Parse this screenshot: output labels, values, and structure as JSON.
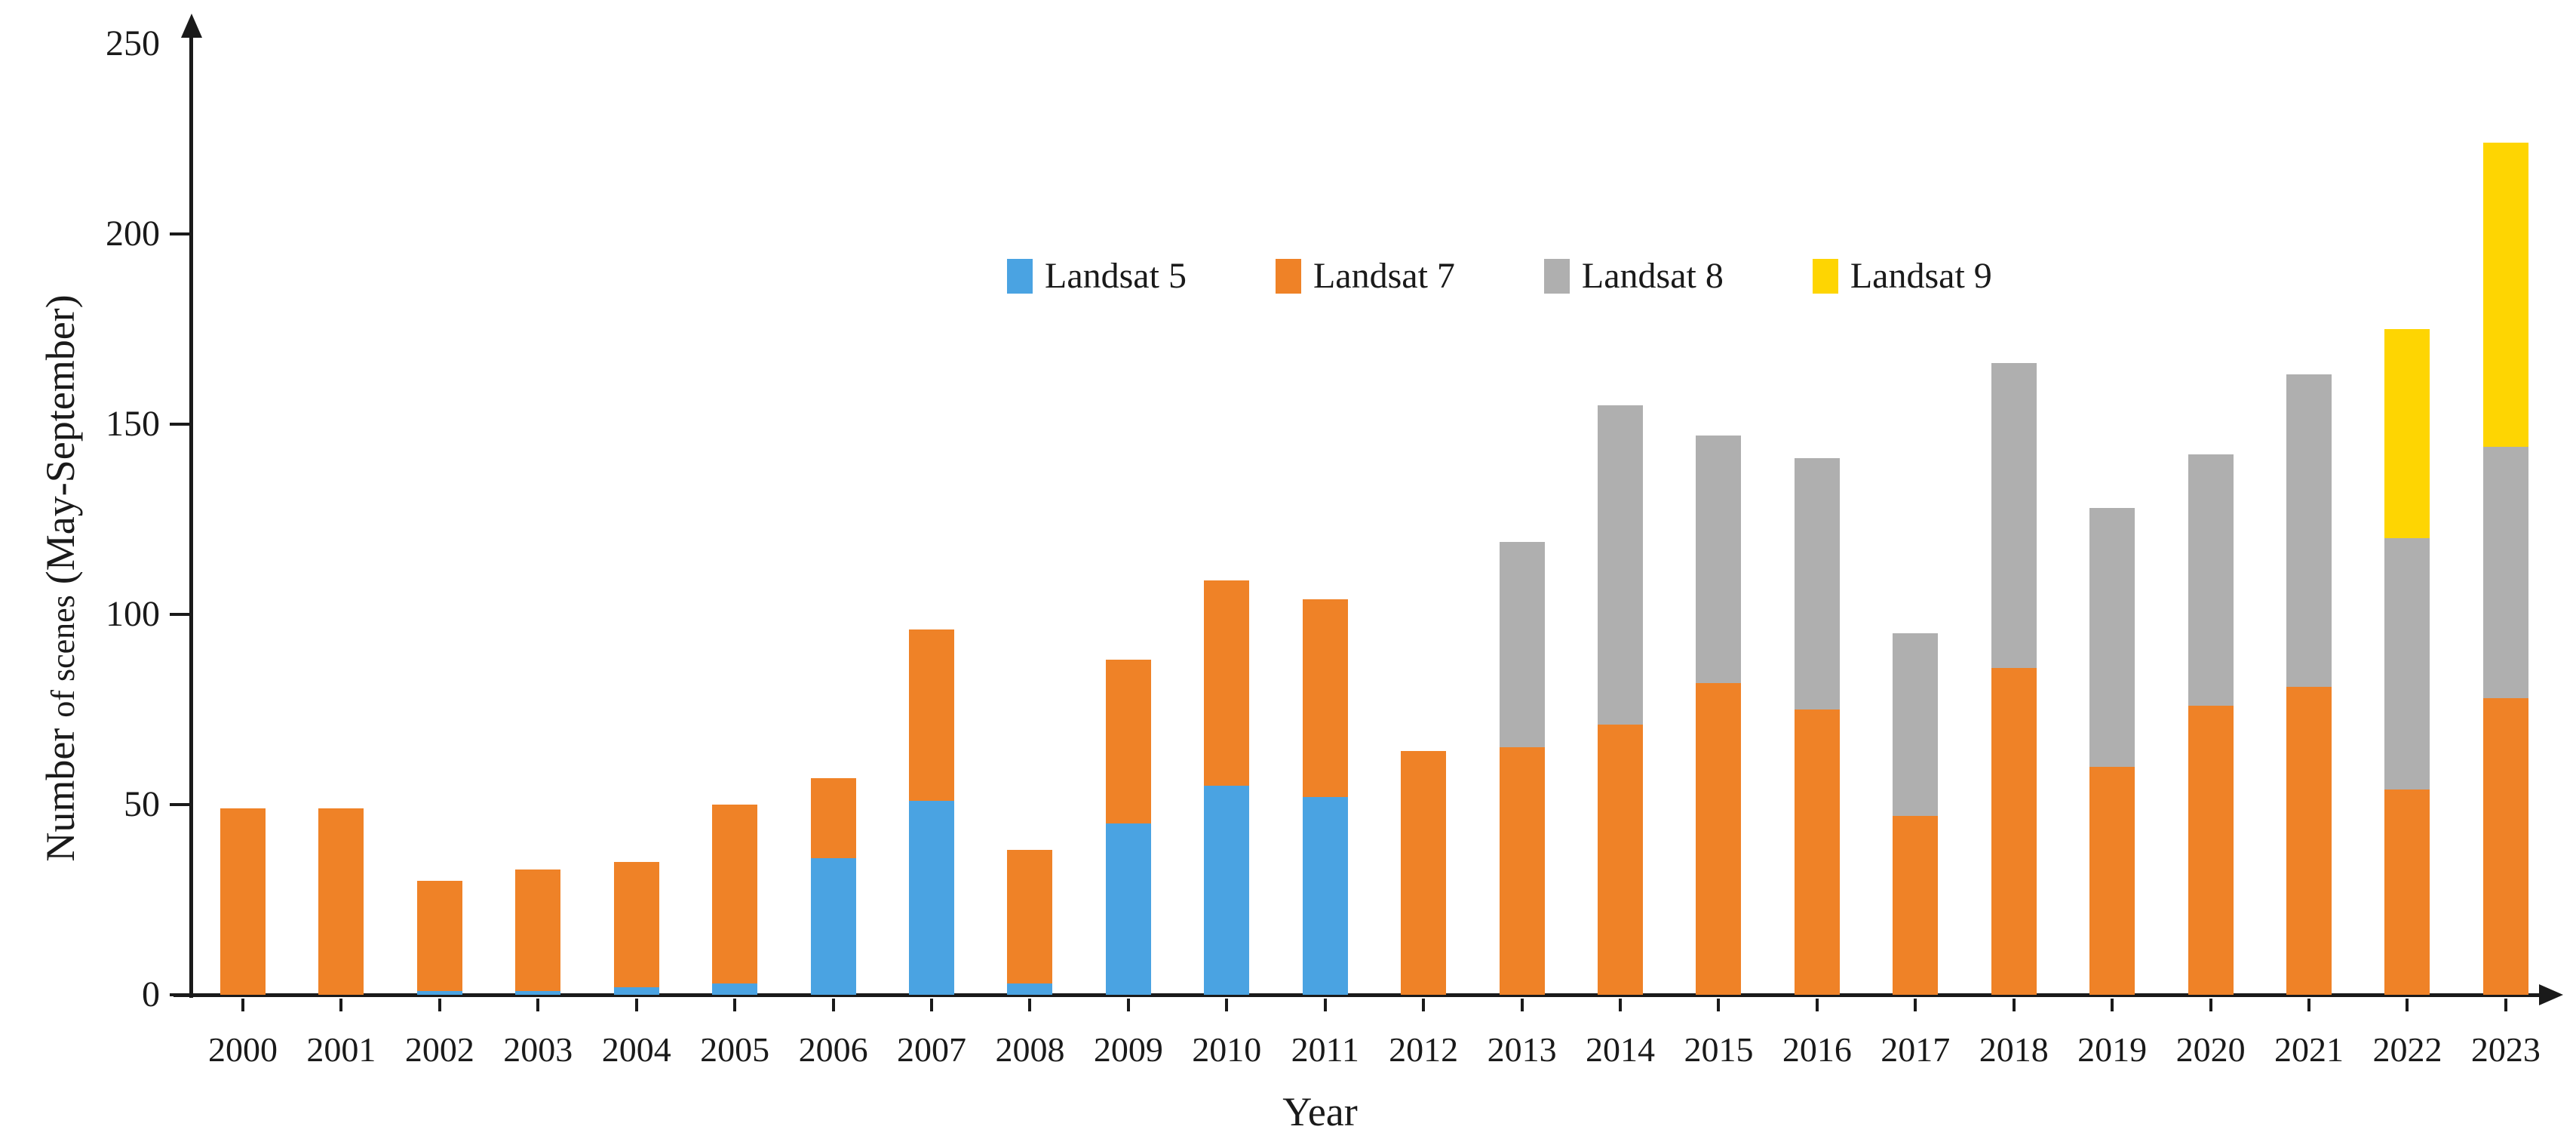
{
  "chart_data": {
    "type": "bar",
    "stacked": true,
    "title": "",
    "xlabel": "Year",
    "ylabel": "Number of scenes (May-September)",
    "ylabel_parts": {
      "pre": "Number",
      "small": "of scenes",
      "post": "(May-September)"
    },
    "x": [
      "2000",
      "2001",
      "2002",
      "2003",
      "2004",
      "2005",
      "2006",
      "2007",
      "2008",
      "2009",
      "2010",
      "2011",
      "2012",
      "2013",
      "2014",
      "2015",
      "2016",
      "2017",
      "2018",
      "2019",
      "2020",
      "2021",
      "2022",
      "2023"
    ],
    "series": [
      {
        "name": "Landsat 5",
        "color": "#4AA3E2",
        "values": [
          0,
          0,
          1,
          1,
          2,
          3,
          36,
          51,
          3,
          45,
          55,
          52,
          0,
          0,
          0,
          0,
          0,
          0,
          0,
          0,
          0,
          0,
          0,
          0
        ]
      },
      {
        "name": "Landsat 7",
        "color": "#EF8227",
        "values": [
          49,
          49,
          29,
          32,
          33,
          47,
          21,
          45,
          35,
          43,
          54,
          52,
          64,
          65,
          71,
          82,
          75,
          47,
          86,
          60,
          76,
          81,
          54,
          78
        ]
      },
      {
        "name": "Landsat 8",
        "color": "#AFAFAF",
        "values": [
          0,
          0,
          0,
          0,
          0,
          0,
          0,
          0,
          0,
          0,
          0,
          0,
          0,
          54,
          84,
          65,
          66,
          48,
          80,
          68,
          66,
          82,
          66,
          66
        ]
      },
      {
        "name": "Landsat 9",
        "color": "#FED502",
        "values": [
          0,
          0,
          0,
          0,
          0,
          0,
          0,
          0,
          0,
          0,
          0,
          0,
          0,
          0,
          0,
          0,
          0,
          0,
          0,
          0,
          0,
          0,
          55,
          80
        ]
      }
    ],
    "totals": [
      49,
      49,
      30,
      33,
      35,
      50,
      57,
      96,
      38,
      88,
      109,
      104,
      64,
      119,
      155,
      147,
      141,
      95,
      166,
      128,
      142,
      163,
      175,
      224
    ],
    "ylim": [
      0,
      250
    ],
    "yticks": [
      "0",
      "50",
      "100",
      "150",
      "200",
      "250"
    ],
    "legend_position": "top-center",
    "grid": false
  }
}
